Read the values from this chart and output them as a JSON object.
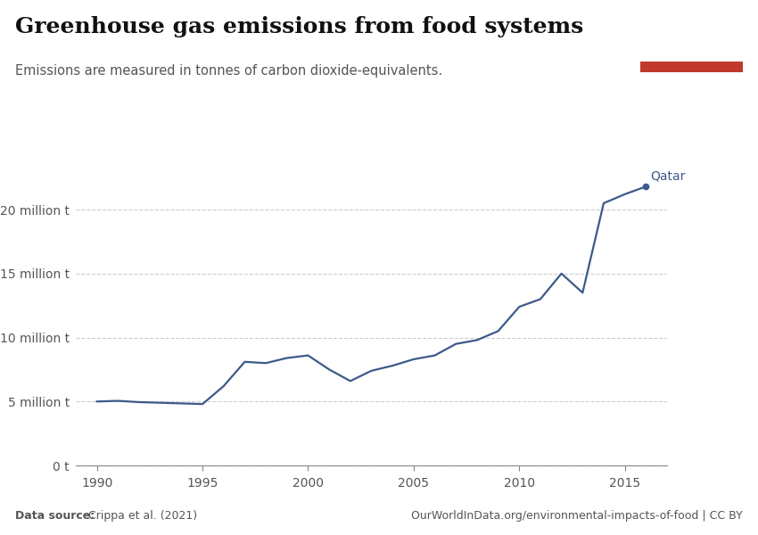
{
  "title": "Greenhouse gas emissions from food systems",
  "subtitle": "Emissions are measured in tonnes of carbon dioxide-equivalents.",
  "country_label": "Qatar",
  "line_color": "#3d5a8a",
  "years": [
    1990,
    1991,
    1992,
    1993,
    1994,
    1995,
    1996,
    1997,
    1998,
    1999,
    2000,
    2001,
    2002,
    2003,
    2004,
    2005,
    2006,
    2007,
    2008,
    2009,
    2010,
    2011,
    2012,
    2013,
    2014,
    2015,
    2016
  ],
  "values": [
    5.0,
    5.05,
    4.95,
    4.9,
    4.85,
    4.8,
    6.2,
    8.1,
    8.0,
    8.4,
    8.6,
    7.5,
    6.6,
    7.4,
    7.8,
    8.3,
    8.6,
    9.5,
    9.8,
    10.5,
    12.4,
    13.0,
    15.0,
    13.5,
    20.5,
    21.2,
    21.8
  ],
  "yticks": [
    0,
    5000000,
    10000000,
    15000000,
    20000000
  ],
  "ytick_labels": [
    "0 t",
    "5 million t",
    "10 million t",
    "15 million t",
    "20 million t"
  ],
  "xticks": [
    1990,
    1995,
    2000,
    2005,
    2010,
    2015
  ],
  "ylim": [
    0,
    23000000
  ],
  "xlim": [
    1989.0,
    2017.0
  ],
  "data_source_bold": "Data source:",
  "data_source_normal": " Crippa et al. (2021)",
  "url": "OurWorldInData.org/environmental-impacts-of-food | CC BY",
  "owid_box_bg": "#1a3a5c",
  "owid_box_red": "#c0392b",
  "title_fontsize": 18,
  "subtitle_fontsize": 10.5,
  "tick_label_fontsize": 10,
  "annotation_fontsize": 10,
  "background_color": "#ffffff",
  "grid_color": "#cccccc",
  "axis_color": "#888888",
  "tick_color": "#555555",
  "title_color": "#111111",
  "subtitle_color": "#555555",
  "footer_color": "#555555"
}
